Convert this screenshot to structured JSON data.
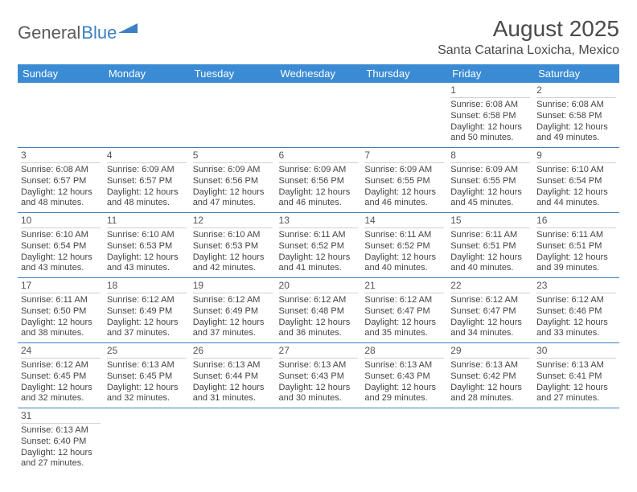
{
  "logo": {
    "part1": "General",
    "part2": "Blue"
  },
  "title": "August 2025",
  "location": "Santa Catarina Loxicha, Mexico",
  "colors": {
    "header_bg": "#3b8bd4",
    "header_text": "#ffffff",
    "cell_border": "#3b7fc4",
    "day_divider": "#d0d0d0",
    "text": "#444444",
    "logo_gray": "#5a5a5a",
    "logo_blue": "#3b7fc4"
  },
  "typography": {
    "title_pt": 28,
    "location_pt": 16,
    "header_pt": 13,
    "cell_pt": 11,
    "daynum_pt": 12
  },
  "day_labels": [
    "Sunday",
    "Monday",
    "Tuesday",
    "Wednesday",
    "Thursday",
    "Friday",
    "Saturday"
  ],
  "weeks": [
    [
      null,
      null,
      null,
      null,
      null,
      {
        "n": "1",
        "sr": "6:08 AM",
        "ss": "6:58 PM",
        "dl": "12 hours and 50 minutes."
      },
      {
        "n": "2",
        "sr": "6:08 AM",
        "ss": "6:58 PM",
        "dl": "12 hours and 49 minutes."
      }
    ],
    [
      {
        "n": "3",
        "sr": "6:08 AM",
        "ss": "6:57 PM",
        "dl": "12 hours and 48 minutes."
      },
      {
        "n": "4",
        "sr": "6:09 AM",
        "ss": "6:57 PM",
        "dl": "12 hours and 48 minutes."
      },
      {
        "n": "5",
        "sr": "6:09 AM",
        "ss": "6:56 PM",
        "dl": "12 hours and 47 minutes."
      },
      {
        "n": "6",
        "sr": "6:09 AM",
        "ss": "6:56 PM",
        "dl": "12 hours and 46 minutes."
      },
      {
        "n": "7",
        "sr": "6:09 AM",
        "ss": "6:55 PM",
        "dl": "12 hours and 46 minutes."
      },
      {
        "n": "8",
        "sr": "6:09 AM",
        "ss": "6:55 PM",
        "dl": "12 hours and 45 minutes."
      },
      {
        "n": "9",
        "sr": "6:10 AM",
        "ss": "6:54 PM",
        "dl": "12 hours and 44 minutes."
      }
    ],
    [
      {
        "n": "10",
        "sr": "6:10 AM",
        "ss": "6:54 PM",
        "dl": "12 hours and 43 minutes."
      },
      {
        "n": "11",
        "sr": "6:10 AM",
        "ss": "6:53 PM",
        "dl": "12 hours and 43 minutes."
      },
      {
        "n": "12",
        "sr": "6:10 AM",
        "ss": "6:53 PM",
        "dl": "12 hours and 42 minutes."
      },
      {
        "n": "13",
        "sr": "6:11 AM",
        "ss": "6:52 PM",
        "dl": "12 hours and 41 minutes."
      },
      {
        "n": "14",
        "sr": "6:11 AM",
        "ss": "6:52 PM",
        "dl": "12 hours and 40 minutes."
      },
      {
        "n": "15",
        "sr": "6:11 AM",
        "ss": "6:51 PM",
        "dl": "12 hours and 40 minutes."
      },
      {
        "n": "16",
        "sr": "6:11 AM",
        "ss": "6:51 PM",
        "dl": "12 hours and 39 minutes."
      }
    ],
    [
      {
        "n": "17",
        "sr": "6:11 AM",
        "ss": "6:50 PM",
        "dl": "12 hours and 38 minutes."
      },
      {
        "n": "18",
        "sr": "6:12 AM",
        "ss": "6:49 PM",
        "dl": "12 hours and 37 minutes."
      },
      {
        "n": "19",
        "sr": "6:12 AM",
        "ss": "6:49 PM",
        "dl": "12 hours and 37 minutes."
      },
      {
        "n": "20",
        "sr": "6:12 AM",
        "ss": "6:48 PM",
        "dl": "12 hours and 36 minutes."
      },
      {
        "n": "21",
        "sr": "6:12 AM",
        "ss": "6:47 PM",
        "dl": "12 hours and 35 minutes."
      },
      {
        "n": "22",
        "sr": "6:12 AM",
        "ss": "6:47 PM",
        "dl": "12 hours and 34 minutes."
      },
      {
        "n": "23",
        "sr": "6:12 AM",
        "ss": "6:46 PM",
        "dl": "12 hours and 33 minutes."
      }
    ],
    [
      {
        "n": "24",
        "sr": "6:12 AM",
        "ss": "6:45 PM",
        "dl": "12 hours and 32 minutes."
      },
      {
        "n": "25",
        "sr": "6:13 AM",
        "ss": "6:45 PM",
        "dl": "12 hours and 32 minutes."
      },
      {
        "n": "26",
        "sr": "6:13 AM",
        "ss": "6:44 PM",
        "dl": "12 hours and 31 minutes."
      },
      {
        "n": "27",
        "sr": "6:13 AM",
        "ss": "6:43 PM",
        "dl": "12 hours and 30 minutes."
      },
      {
        "n": "28",
        "sr": "6:13 AM",
        "ss": "6:43 PM",
        "dl": "12 hours and 29 minutes."
      },
      {
        "n": "29",
        "sr": "6:13 AM",
        "ss": "6:42 PM",
        "dl": "12 hours and 28 minutes."
      },
      {
        "n": "30",
        "sr": "6:13 AM",
        "ss": "6:41 PM",
        "dl": "12 hours and 27 minutes."
      }
    ],
    [
      {
        "n": "31",
        "sr": "6:13 AM",
        "ss": "6:40 PM",
        "dl": "12 hours and 27 minutes."
      },
      null,
      null,
      null,
      null,
      null,
      null
    ]
  ],
  "labels": {
    "sunrise": "Sunrise:",
    "sunset": "Sunset:",
    "daylight": "Daylight:"
  }
}
